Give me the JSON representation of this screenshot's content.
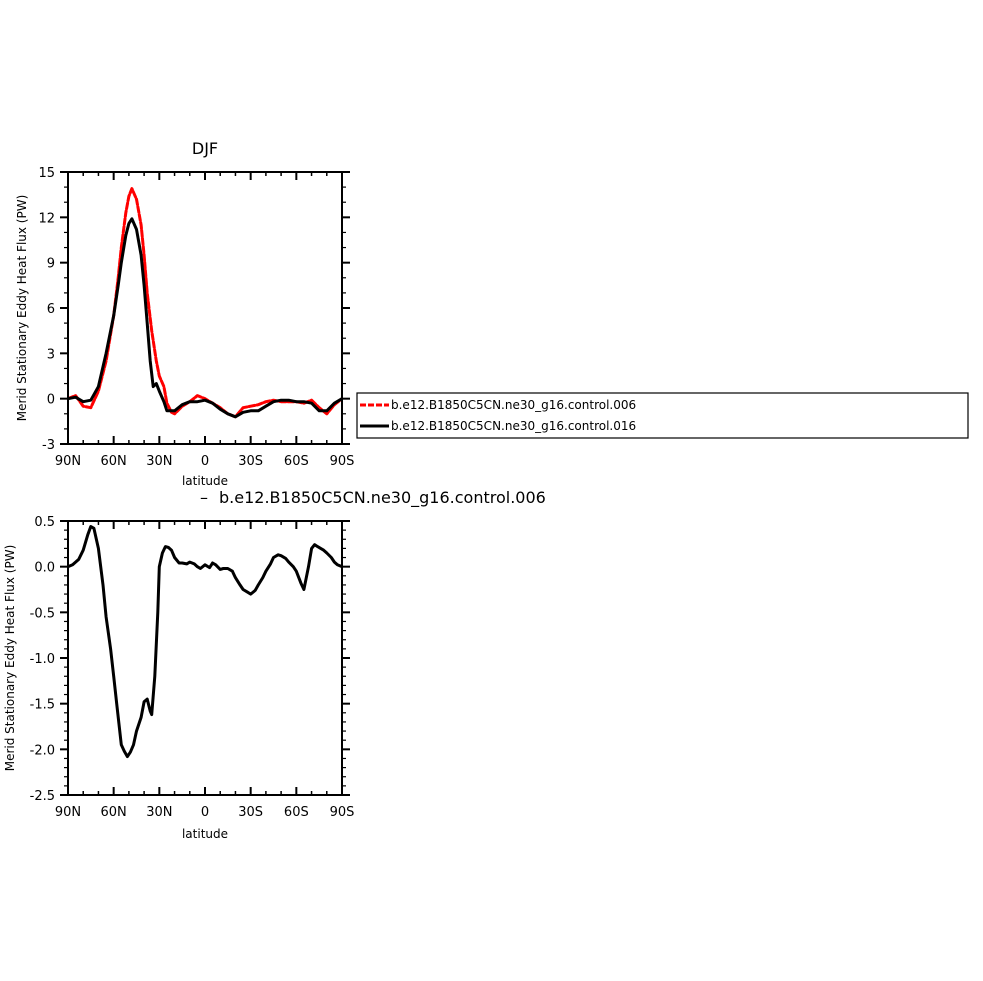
{
  "colors": {
    "series_006": "#ff0000",
    "series_016": "#000000",
    "axis": "#000000"
  },
  "chart_data": [
    {
      "type": "line",
      "title": "DJF",
      "xlabel": "latitude",
      "ylabel": "Merid Stationary Eddy Heat Flux (PW)",
      "xlim": [
        90,
        -90
      ],
      "ylim": [
        -3,
        15
      ],
      "xticks": [
        90,
        60,
        30,
        0,
        -30,
        -60,
        -90
      ],
      "xtick_labels": [
        "90N",
        "60N",
        "30N",
        "0",
        "30S",
        "60S",
        "90S"
      ],
      "yticks": [
        -3,
        0,
        3,
        6,
        9,
        12,
        15
      ],
      "ytick_labels": [
        "-3",
        "0",
        "3",
        "6",
        "9",
        "12",
        "15"
      ],
      "legend_placement": "right",
      "series": [
        {
          "name": "b.e12.B1850C5CN.ne30_g16.control.006",
          "color": "#ff0000",
          "style": "dashed",
          "x": [
            90,
            85,
            80,
            75,
            70,
            65,
            60,
            57,
            55,
            52,
            50,
            48,
            45,
            42,
            40,
            38,
            35,
            32,
            30,
            27,
            25,
            22,
            20,
            15,
            10,
            5,
            0,
            -5,
            -10,
            -15,
            -20,
            -25,
            -30,
            -35,
            -40,
            -45,
            -50,
            -55,
            -60,
            -65,
            -70,
            -75,
            -80,
            -85,
            -90
          ],
          "y": [
            0,
            0.2,
            -0.5,
            -0.6,
            0.5,
            2.5,
            5.5,
            8.0,
            10.0,
            12.3,
            13.4,
            13.9,
            13.2,
            11.5,
            9.5,
            7.0,
            4.5,
            2.5,
            1.5,
            0.8,
            -0.3,
            -0.9,
            -1.0,
            -0.5,
            -0.2,
            0.2,
            0,
            -0.3,
            -0.6,
            -1.0,
            -1.2,
            -0.6,
            -0.5,
            -0.4,
            -0.2,
            -0.1,
            -0.2,
            -0.2,
            -0.2,
            -0.3,
            -0.1,
            -0.6,
            -1.0,
            -0.4,
            0
          ]
        },
        {
          "name": "b.e12.B1850C5CN.ne30_g16.control.016",
          "color": "#000000",
          "style": "solid",
          "x": [
            90,
            85,
            80,
            75,
            70,
            65,
            60,
            57,
            55,
            52,
            50,
            48,
            45,
            42,
            40,
            38,
            36,
            34,
            32,
            30,
            27,
            25,
            22,
            20,
            15,
            10,
            5,
            0,
            -5,
            -10,
            -15,
            -20,
            -25,
            -30,
            -35,
            -40,
            -45,
            -50,
            -55,
            -60,
            -65,
            -70,
            -75,
            -80,
            -85,
            -90
          ],
          "y": [
            0,
            0.1,
            -0.2,
            -0.1,
            0.8,
            3.0,
            5.5,
            7.5,
            9.0,
            10.8,
            11.6,
            11.9,
            11.2,
            9.5,
            7.5,
            5.0,
            2.5,
            0.8,
            1.0,
            0.5,
            -0.2,
            -0.8,
            -0.8,
            -0.8,
            -0.4,
            -0.2,
            -0.2,
            -0.1,
            -0.3,
            -0.7,
            -1.0,
            -1.2,
            -0.9,
            -0.8,
            -0.8,
            -0.5,
            -0.2,
            -0.1,
            -0.1,
            -0.2,
            -0.2,
            -0.3,
            -0.8,
            -0.8,
            -0.3,
            0
          ]
        }
      ]
    },
    {
      "type": "line",
      "title": "b.e12.B1850C5CN.ne30_g16.control.006",
      "xlabel": "latitude",
      "ylabel": "Merid Stationary Eddy Heat Flux (PW)",
      "xlim": [
        90,
        -90
      ],
      "ylim": [
        -2.5,
        0.5
      ],
      "xticks": [
        90,
        60,
        30,
        0,
        -30,
        -60,
        -90
      ],
      "xtick_labels": [
        "90N",
        "60N",
        "30N",
        "0",
        "30S",
        "60S",
        "90S"
      ],
      "yticks": [
        -2.5,
        -2.0,
        -1.5,
        -1.0,
        -0.5,
        0.0,
        0.5
      ],
      "ytick_labels": [
        "-2.5",
        "-2.0",
        "-1.5",
        "-1.0",
        "-0.5",
        "0.0",
        "0.5"
      ],
      "series": [
        {
          "color": "#000000",
          "style": "solid",
          "x": [
            90,
            87,
            83,
            80,
            77,
            75,
            73,
            70,
            67,
            65,
            62,
            60,
            58,
            55,
            53,
            51,
            49,
            47,
            45,
            42,
            40,
            38,
            36,
            35,
            33,
            31,
            30,
            28,
            26,
            24,
            22,
            20,
            17,
            15,
            12,
            10,
            7,
            5,
            3,
            0,
            -3,
            -5,
            -7,
            -10,
            -12,
            -15,
            -18,
            -20,
            -23,
            -25,
            -28,
            -30,
            -33,
            -35,
            -38,
            -40,
            -43,
            -45,
            -48,
            -50,
            -53,
            -55,
            -58,
            -60,
            -63,
            -65,
            -68,
            -70,
            -72,
            -74,
            -76,
            -78,
            -80,
            -83,
            -85,
            -87,
            -90
          ],
          "y": [
            0,
            0.02,
            0.08,
            0.18,
            0.35,
            0.44,
            0.42,
            0.2,
            -0.2,
            -0.55,
            -0.9,
            -1.2,
            -1.5,
            -1.95,
            -2.02,
            -2.08,
            -2.03,
            -1.95,
            -1.8,
            -1.65,
            -1.48,
            -1.45,
            -1.58,
            -1.62,
            -1.2,
            -0.5,
            0.0,
            0.15,
            0.22,
            0.21,
            0.18,
            0.1,
            0.04,
            0.04,
            0.03,
            0.05,
            0.03,
            0.0,
            -0.02,
            0.02,
            -0.01,
            0.04,
            0.02,
            -0.03,
            -0.02,
            -0.02,
            -0.05,
            -0.12,
            -0.2,
            -0.25,
            -0.28,
            -0.3,
            -0.26,
            -0.2,
            -0.12,
            -0.05,
            0.03,
            0.1,
            0.13,
            0.12,
            0.09,
            0.05,
            0.0,
            -0.05,
            -0.18,
            -0.25,
            0.0,
            0.2,
            0.24,
            0.22,
            0.2,
            0.18,
            0.15,
            0.1,
            0.05,
            0.02,
            0.0
          ]
        }
      ]
    }
  ]
}
